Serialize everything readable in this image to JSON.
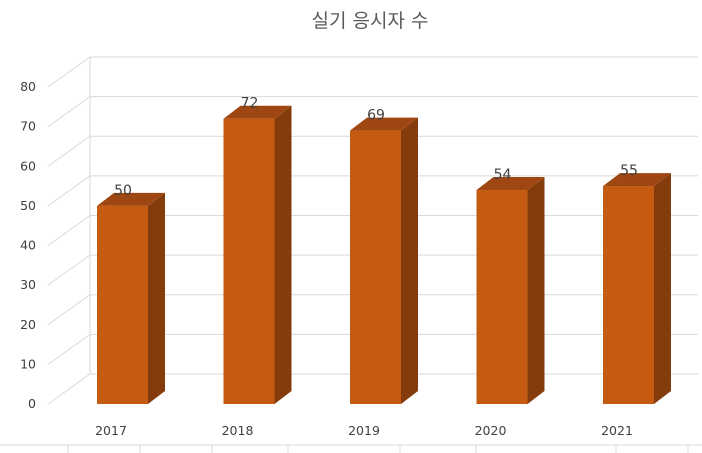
{
  "chart_data": {
    "type": "bar",
    "title": "실기 응시자 수",
    "categories": [
      "2017",
      "2018",
      "2019",
      "2020",
      "2021"
    ],
    "values": [
      50,
      72,
      69,
      54,
      55
    ],
    "ylim": [
      0,
      80
    ],
    "yticks": [
      0,
      10,
      20,
      30,
      40,
      50,
      60,
      70,
      80
    ],
    "grid": true,
    "legend": "none",
    "colors": {
      "bar_front": "#c55a11",
      "bar_side": "#843c0c",
      "bar_top": "#9e4712"
    }
  }
}
